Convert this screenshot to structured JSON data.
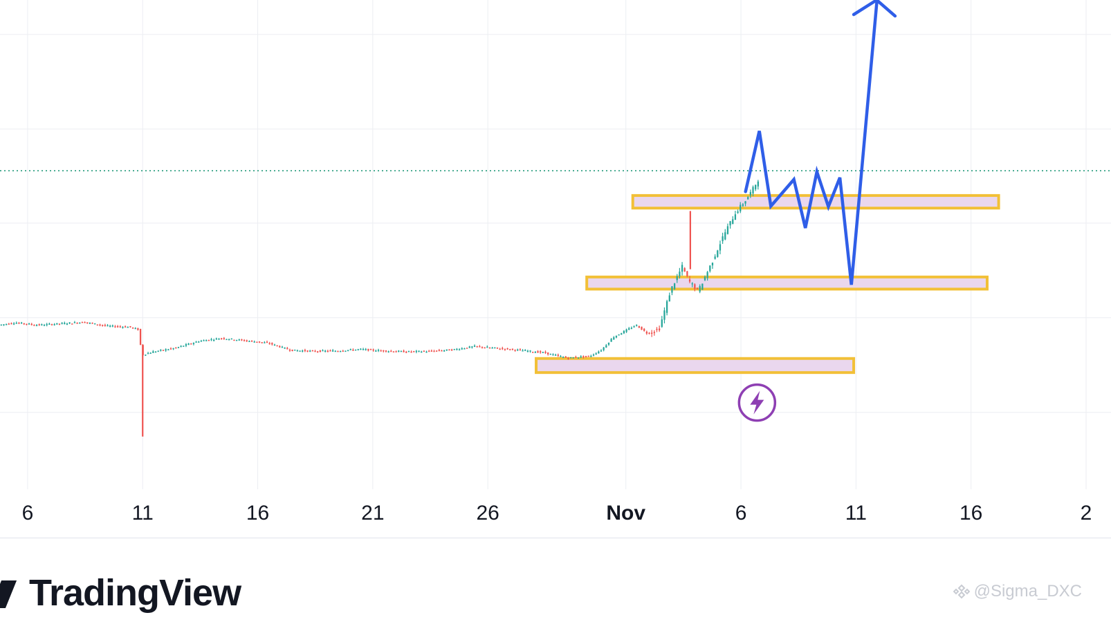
{
  "colors": {
    "up": "#26a69a",
    "down": "#ef5350",
    "grid": "#eceef2",
    "price_line": "#22997a",
    "zone_fill": "#ead7ee",
    "zone_border": "#f2c037",
    "projection": "#2f5ee8",
    "event_icon": "#8e3fb3"
  },
  "brand": {
    "name": "TradingView"
  },
  "watermark": {
    "text": "@Sigma_DXC"
  },
  "chart_data": {
    "type": "candlestick",
    "x_ticks": [
      {
        "label": "6",
        "day": 6,
        "bold": false
      },
      {
        "label": "11",
        "day": 11,
        "bold": false
      },
      {
        "label": "16",
        "day": 16,
        "bold": false
      },
      {
        "label": "21",
        "day": 21,
        "bold": false
      },
      {
        "label": "26",
        "day": 26,
        "bold": false
      },
      {
        "label": "Nov",
        "day": 32,
        "bold": true
      },
      {
        "label": "6",
        "day": 37,
        "bold": false
      },
      {
        "label": "11",
        "day": 42,
        "bold": false
      },
      {
        "label": "16",
        "day": 47,
        "bold": false
      },
      {
        "label": "2",
        "day": 52,
        "bold": false
      }
    ],
    "x_range": [
      4.8,
      52.0
    ],
    "y_range": [
      0,
      1000
    ],
    "y_grid": [
      150,
      345,
      540,
      734,
      929
    ],
    "current_price": 648,
    "candle_path": [
      [
        4.8,
        330
      ],
      [
        5.5,
        335
      ],
      [
        6.5,
        330
      ],
      [
        7.5,
        333
      ],
      [
        8.5,
        336
      ],
      [
        9.5,
        328
      ],
      [
        10.5,
        326
      ],
      [
        10.9,
        320
      ],
      [
        11.0,
        268
      ],
      [
        11.5,
        275
      ],
      [
        12.5,
        283
      ],
      [
        13.5,
        297
      ],
      [
        14.5,
        303
      ],
      [
        15.5,
        298
      ],
      [
        16.5,
        293
      ],
      [
        17.5,
        278
      ],
      [
        18.5,
        276
      ],
      [
        19.5,
        277
      ],
      [
        20.5,
        280
      ],
      [
        21.5,
        277
      ],
      [
        22.5,
        275
      ],
      [
        23.5,
        276
      ],
      [
        24.5,
        279
      ],
      [
        25.5,
        286
      ],
      [
        26.5,
        282
      ],
      [
        27.5,
        278
      ],
      [
        28.5,
        273
      ],
      [
        29.5,
        262
      ],
      [
        30.5,
        266
      ],
      [
        31.0,
        279
      ],
      [
        31.5,
        305
      ],
      [
        32.5,
        330
      ],
      [
        33.0,
        312
      ],
      [
        33.5,
        322
      ],
      [
        34.0,
        402
      ],
      [
        34.5,
        450
      ],
      [
        34.8,
        420
      ],
      [
        35.2,
        400
      ],
      [
        35.8,
        460
      ],
      [
        36.3,
        515
      ],
      [
        36.8,
        560
      ],
      [
        37.3,
        590
      ],
      [
        37.6,
        612
      ],
      [
        37.8,
        630
      ]
    ],
    "candle_count": 300,
    "wicks": [
      {
        "day": 11.0,
        "high": 290,
        "low": 100
      },
      {
        "day": 34.8,
        "high": 565,
        "low": 445
      }
    ],
    "zones": [
      {
        "label": "upper",
        "x0": 32.3,
        "x1": 48.2,
        "y0": 571,
        "y1": 597
      },
      {
        "label": "middle",
        "x0": 30.3,
        "x1": 47.7,
        "y0": 404,
        "y1": 429
      },
      {
        "label": "lower",
        "x0": 28.1,
        "x1": 41.9,
        "y0": 232,
        "y1": 261
      }
    ],
    "projection_path": [
      [
        37.2,
        605
      ],
      [
        37.8,
        730
      ],
      [
        38.3,
        575
      ],
      [
        39.3,
        630
      ],
      [
        39.8,
        530
      ],
      [
        40.3,
        646
      ],
      [
        40.8,
        574
      ],
      [
        41.3,
        634
      ],
      [
        41.8,
        413
      ],
      [
        42.9,
        993
      ]
    ],
    "projection_arrow_head": [
      [
        41.9,
        970
      ],
      [
        42.9,
        1000
      ],
      [
        43.7,
        967
      ]
    ],
    "event_marker": {
      "day": 37.7,
      "price": 170,
      "icon": "lightning-icon"
    }
  }
}
